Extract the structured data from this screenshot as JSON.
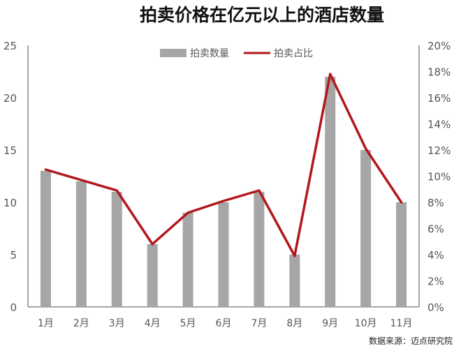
{
  "chart_data": {
    "type": "bar",
    "title": "拍卖价格在亿元以上的酒店数量",
    "categories": [
      "1月",
      "2月",
      "3月",
      "4月",
      "5月",
      "6月",
      "7月",
      "8月",
      "9月",
      "10月",
      "11月"
    ],
    "series": [
      {
        "name": "拍卖数量",
        "type": "bar",
        "axis": "left",
        "color": "#a6a6a6",
        "values": [
          13,
          12,
          11,
          6,
          9,
          10,
          11,
          5,
          22,
          15,
          10
        ]
      },
      {
        "name": "拍卖占比",
        "type": "line",
        "axis": "right",
        "color": "#b2171c",
        "values": [
          10.5,
          9.7,
          8.9,
          4.8,
          7.2,
          8.1,
          8.9,
          3.9,
          17.8,
          12.1,
          8.0
        ]
      }
    ],
    "y_left": {
      "lim": [
        0,
        25
      ],
      "ticks": [
        "0",
        "5",
        "10",
        "15",
        "20",
        "25"
      ]
    },
    "y_right": {
      "lim": [
        0,
        20
      ],
      "ticks": [
        "0%",
        "2%",
        "4%",
        "6%",
        "8%",
        "10%",
        "12%",
        "14%",
        "16%",
        "18%",
        "20%"
      ]
    },
    "grid": false,
    "legend": "top-center"
  },
  "source": "数据来源：迈点研究院"
}
